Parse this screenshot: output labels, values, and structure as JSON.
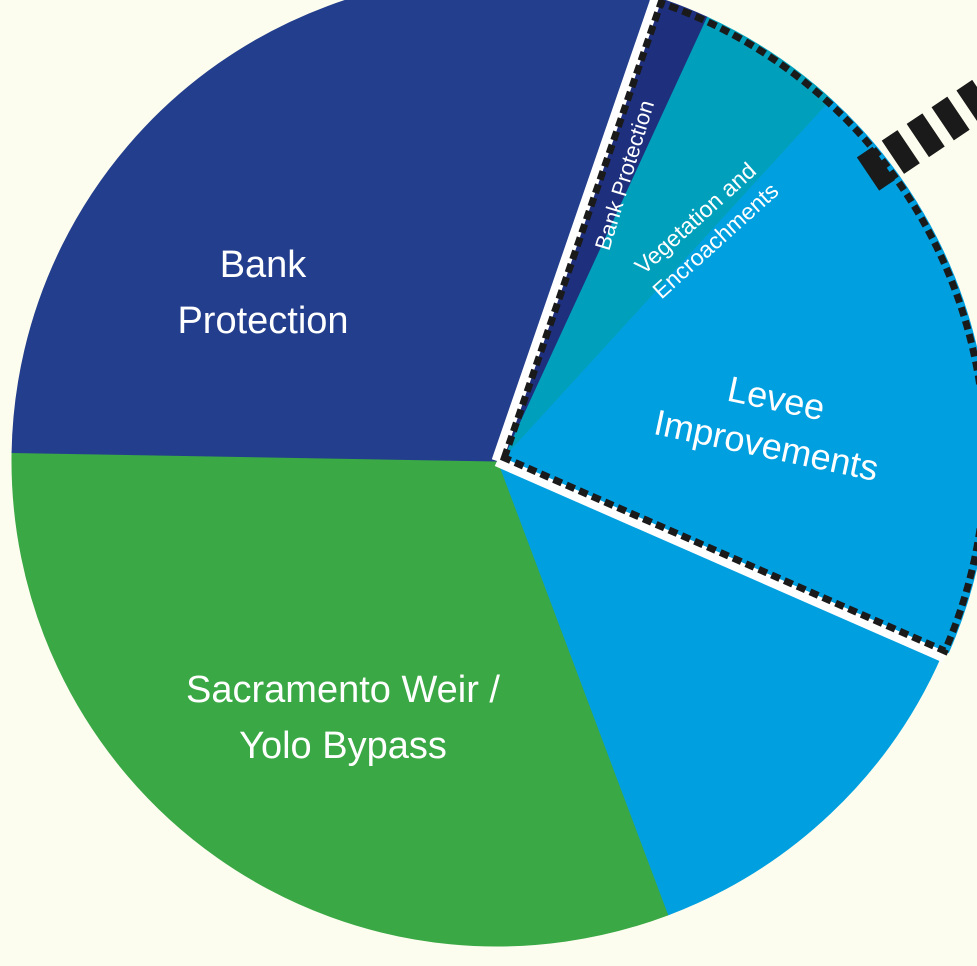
{
  "chart_data": {
    "type": "pie",
    "slices": [
      {
        "label": "Bank Protection",
        "value": 1.6,
        "color": "#1e2f7d",
        "group": "outlined"
      },
      {
        "label": "Vegetation and Encroachments",
        "value": 4.9,
        "color": "#00a0bc",
        "group": "outlined"
      },
      {
        "label": "Levee Improvements",
        "value": 19.8,
        "color": "#009fe0",
        "group": "outlined"
      },
      {
        "label": "",
        "value": 12.7,
        "color": "#009fe0",
        "group": "main"
      },
      {
        "label": "Sacramento Weir / Yolo Bypass",
        "value": 31.0,
        "color": "#3aa845",
        "group": "main"
      },
      {
        "label": "Bank Protection",
        "value": 30.0,
        "color": "#233e8c",
        "group": "main"
      }
    ],
    "colors": {
      "background": "#fdfdef",
      "separator": "#ffffff",
      "outline": "#1a1a1a"
    }
  }
}
